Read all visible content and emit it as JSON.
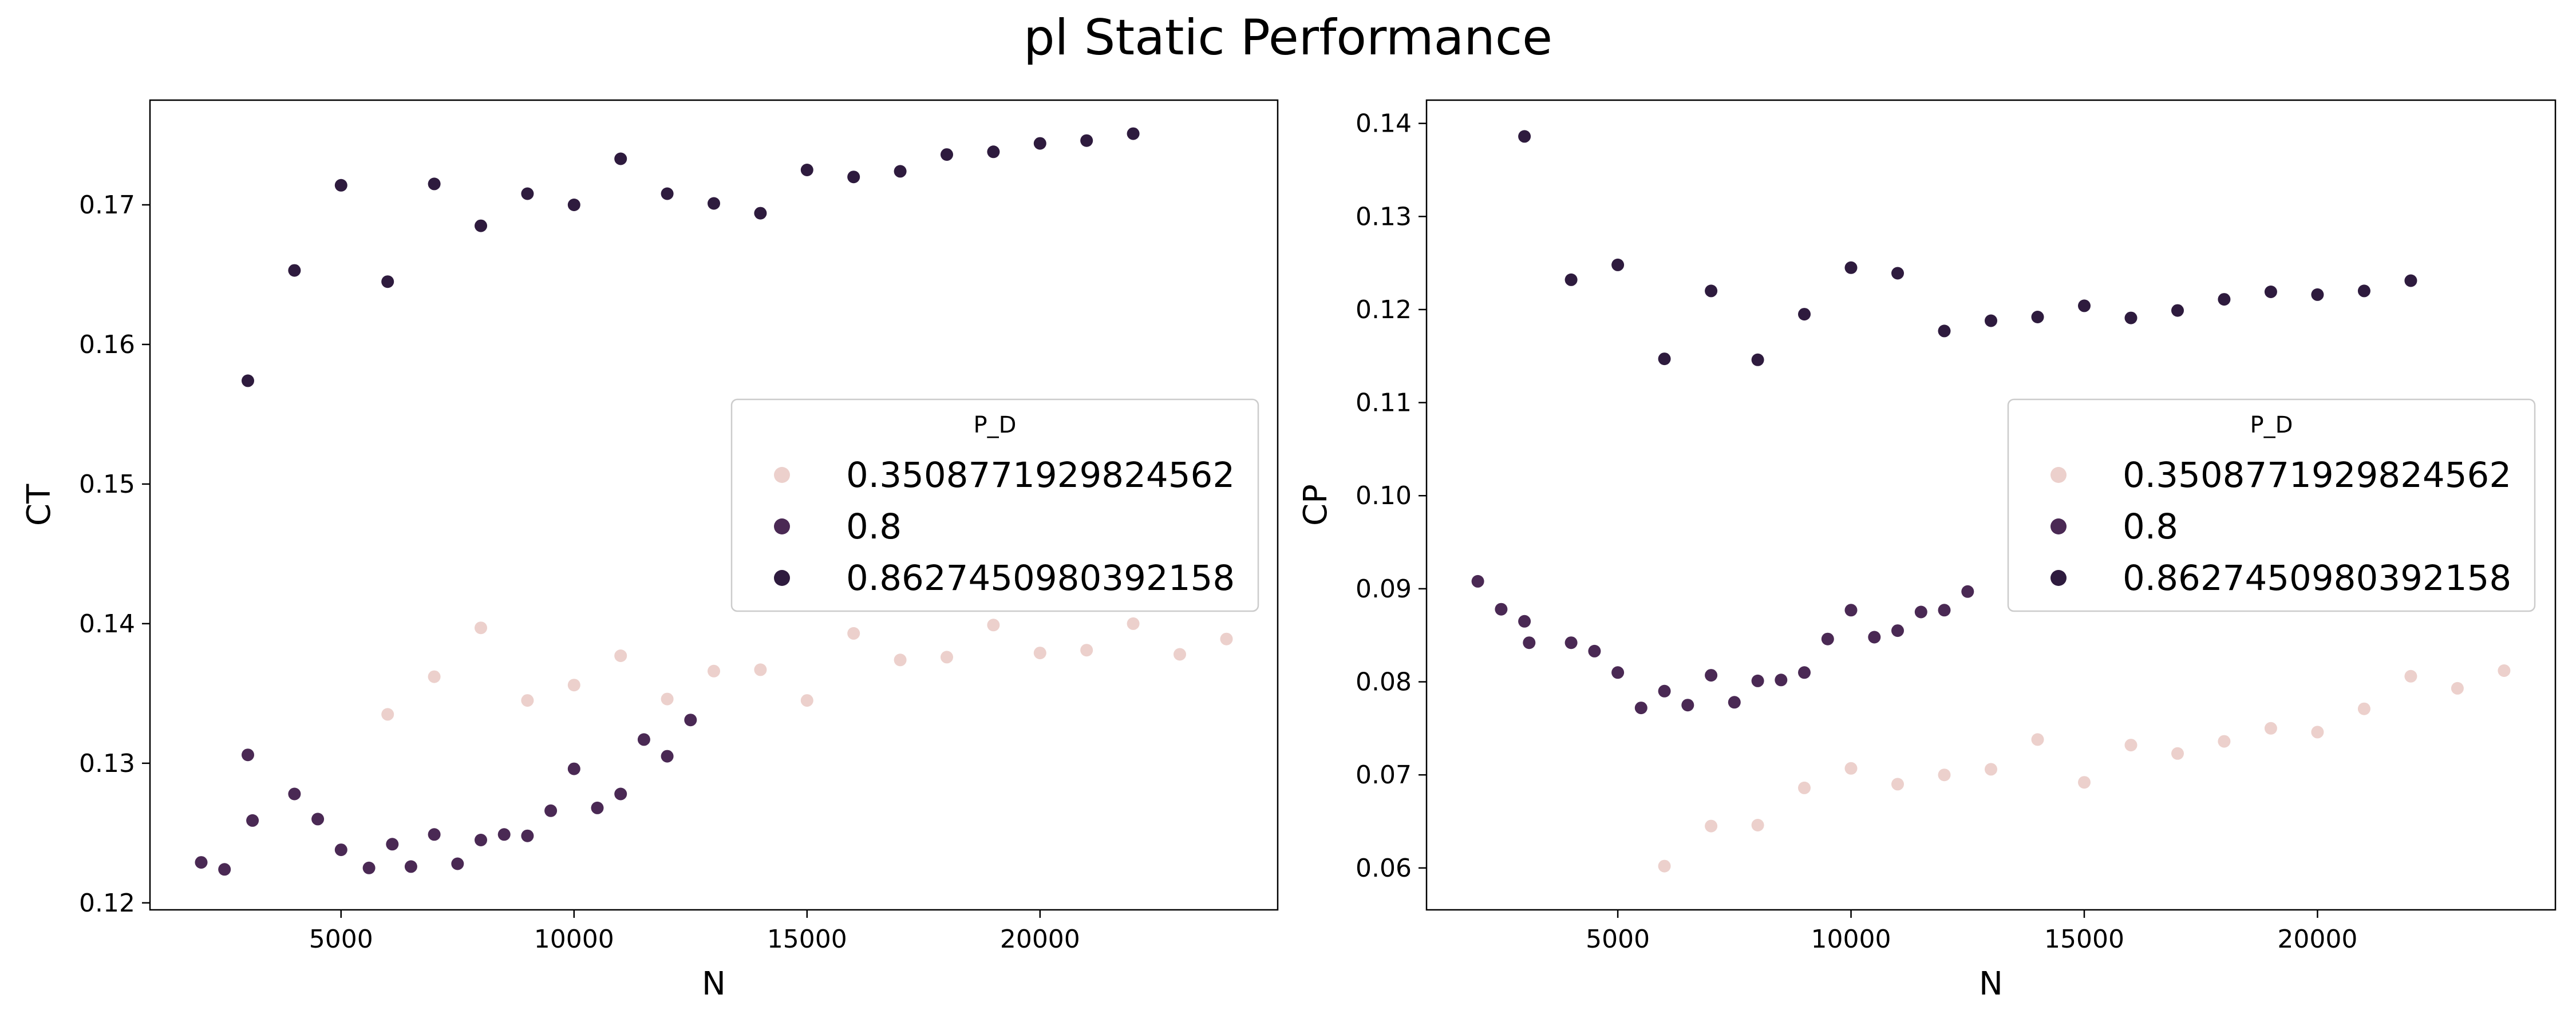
{
  "figure": {
    "title": "pl Static Performance"
  },
  "colors": {
    "0.3508771929824562": "#ecd0cc",
    "0.8": "#4a2954",
    "0.8627450980392158": "#2e1b3e",
    "axes": "#000000"
  },
  "chart_data": [
    {
      "type": "scatter",
      "xlabel": "N",
      "ylabel": "CT",
      "xlim": [
        900,
        25100
      ],
      "ylim": [
        0.1195,
        0.1775
      ],
      "xticks": [
        5000,
        10000,
        15000,
        20000
      ],
      "xtick_labels": [
        "5000",
        "10000",
        "15000",
        "20000"
      ],
      "yticks": [
        0.12,
        0.13,
        0.14,
        0.15,
        0.16,
        0.17
      ],
      "ytick_labels": [
        "0.12",
        "0.13",
        "0.14",
        "0.15",
        "0.16",
        "0.17"
      ],
      "grid": false,
      "legend": {
        "title": "P_D",
        "placement": "center-right"
      },
      "series": [
        {
          "name": "0.3508771929824562",
          "x": [
            6000,
            7000,
            8000,
            9000,
            10000,
            11000,
            12000,
            13000,
            14000,
            15000,
            16000,
            17000,
            18000,
            19000,
            20000,
            21000,
            22000,
            23000,
            24000
          ],
          "y": [
            0.1335,
            0.1362,
            0.1397,
            0.1345,
            0.1356,
            0.1377,
            0.1346,
            0.1366,
            0.1367,
            0.1345,
            0.1393,
            0.1374,
            0.1376,
            0.1399,
            0.1379,
            0.1381,
            0.14,
            0.1378,
            0.1389
          ]
        },
        {
          "name": "0.8",
          "x": [
            2000,
            2500,
            3000,
            3100,
            4000,
            4500,
            5000,
            5600,
            6100,
            6500,
            7000,
            7500,
            8000,
            8500,
            9000,
            9500,
            10000,
            10500,
            11000,
            11500,
            12000,
            12500
          ],
          "y": [
            0.1229,
            0.1224,
            0.1306,
            0.1259,
            0.1278,
            0.126,
            0.1238,
            0.1225,
            0.1242,
            0.1226,
            0.1249,
            0.1228,
            0.1245,
            0.1249,
            0.1248,
            0.1266,
            0.1296,
            0.1268,
            0.1278,
            0.1317,
            0.1305,
            0.1331
          ]
        },
        {
          "name": "0.8627450980392158",
          "x": [
            3000,
            4000,
            5000,
            6000,
            7000,
            8000,
            9000,
            10000,
            11000,
            12000,
            13000,
            14000,
            15000,
            16000,
            17000,
            18000,
            19000,
            20000,
            21000,
            22000
          ],
          "y": [
            0.1574,
            0.1653,
            0.1714,
            0.1645,
            0.1715,
            0.1685,
            0.1708,
            0.17,
            0.1733,
            0.1708,
            0.1701,
            0.1694,
            0.1725,
            0.172,
            0.1724,
            0.1736,
            0.1738,
            0.1744,
            0.1746,
            0.1751
          ]
        }
      ]
    },
    {
      "type": "scatter",
      "xlabel": "N",
      "ylabel": "CP",
      "xlim": [
        900,
        25100
      ],
      "ylim": [
        0.0555,
        0.1425
      ],
      "xticks": [
        5000,
        10000,
        15000,
        20000
      ],
      "xtick_labels": [
        "5000",
        "10000",
        "15000",
        "20000"
      ],
      "yticks": [
        0.06,
        0.07,
        0.08,
        0.09,
        0.1,
        0.11,
        0.12,
        0.13,
        0.14
      ],
      "ytick_labels": [
        "0.06",
        "0.07",
        "0.08",
        "0.09",
        "0.10",
        "0.11",
        "0.12",
        "0.13",
        "0.14"
      ],
      "grid": false,
      "legend": {
        "title": "P_D",
        "placement": "center-right"
      },
      "series": [
        {
          "name": "0.3508771929824562",
          "x": [
            6000,
            7000,
            8000,
            9000,
            10000,
            11000,
            12000,
            13000,
            14000,
            15000,
            16000,
            17000,
            18000,
            19000,
            20000,
            21000,
            22000,
            23000,
            24000
          ],
          "y": [
            0.0602,
            0.0645,
            0.0646,
            0.0686,
            0.0707,
            0.069,
            0.07,
            0.0706,
            0.0738,
            0.0692,
            0.0732,
            0.0723,
            0.0736,
            0.075,
            0.0746,
            0.0771,
            0.0806,
            0.0793,
            0.0812
          ]
        },
        {
          "name": "0.8",
          "x": [
            2000,
            2500,
            3000,
            3100,
            4000,
            4500,
            5000,
            5500,
            6000,
            6500,
            7000,
            7500,
            8000,
            8500,
            9000,
            9500,
            10000,
            10500,
            11000,
            11500,
            12000,
            12500
          ],
          "y": [
            0.0908,
            0.0878,
            0.0865,
            0.0842,
            0.0842,
            0.0833,
            0.081,
            0.0772,
            0.079,
            0.0775,
            0.0807,
            0.0778,
            0.0801,
            0.0802,
            0.081,
            0.0846,
            0.0877,
            0.0848,
            0.0855,
            0.0875,
            0.0877,
            0.0897
          ]
        },
        {
          "name": "0.8627450980392158",
          "x": [
            3000,
            4000,
            5000,
            6000,
            7000,
            8000,
            9000,
            10000,
            11000,
            12000,
            13000,
            14000,
            15000,
            16000,
            17000,
            18000,
            19000,
            20000,
            21000,
            22000
          ],
          "y": [
            0.1386,
            0.1232,
            0.1248,
            0.1147,
            0.122,
            0.1146,
            0.1195,
            0.1245,
            0.1239,
            0.1177,
            0.1188,
            0.1192,
            0.1204,
            0.1191,
            0.1199,
            0.1211,
            0.1219,
            0.1216,
            0.122,
            0.1231
          ]
        }
      ]
    }
  ]
}
